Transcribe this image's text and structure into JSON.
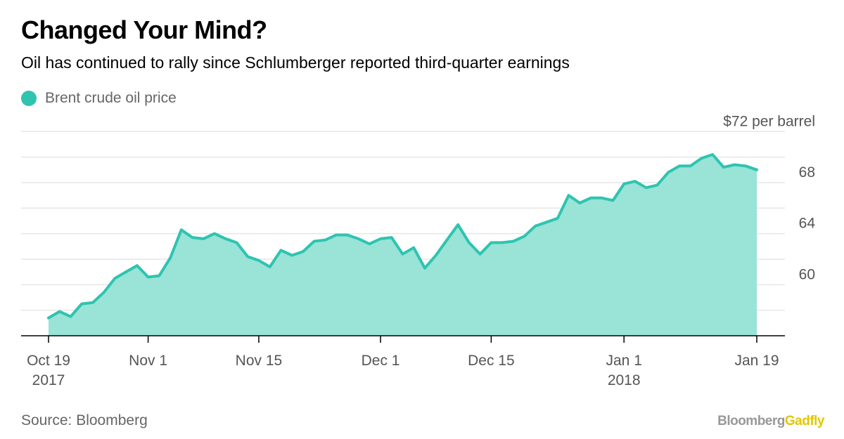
{
  "title": "Changed Your Mind?",
  "subtitle": "Oil has continued to rally since Schlumberger reported third-quarter earnings",
  "colors": {
    "series_line": "#2ec4b0",
    "series_fill": "#99e3d7",
    "grid": "#e6e6e6",
    "axis": "#000000",
    "tick_text": "#555555"
  },
  "legend": {
    "label": "Brent crude oil price"
  },
  "source": "Source: Bloomberg",
  "brand": {
    "part1": "Bloomberg",
    "part2": "Gadfly"
  },
  "chart_data": {
    "type": "area",
    "title": "Changed Your Mind?",
    "series": [
      {
        "name": "Brent crude oil price",
        "unit": "$ per barrel",
        "values": [
          57.4,
          57.9,
          57.5,
          58.5,
          58.6,
          59.4,
          60.5,
          61.0,
          61.5,
          60.6,
          60.7,
          62.1,
          64.3,
          63.7,
          63.6,
          64.0,
          63.6,
          63.3,
          62.2,
          61.9,
          61.4,
          62.7,
          62.3,
          62.6,
          63.4,
          63.5,
          63.9,
          63.9,
          63.6,
          63.2,
          63.6,
          63.7,
          62.4,
          62.9,
          61.3,
          62.3,
          63.5,
          64.7,
          63.3,
          62.4,
          63.3,
          63.3,
          63.4,
          63.8,
          64.6,
          64.9,
          65.2,
          67.0,
          66.4,
          66.8,
          66.8,
          66.6,
          67.9,
          68.1,
          67.6,
          67.8,
          68.8,
          69.3,
          69.3,
          69.9,
          70.2,
          69.2,
          69.4,
          69.3,
          69.0
        ]
      }
    ],
    "x_ticks": [
      {
        "label": "Oct 19",
        "sublabel": "2017",
        "index": 0
      },
      {
        "label": "Nov 1",
        "sublabel": "",
        "index": 9
      },
      {
        "label": "Nov 15",
        "sublabel": "",
        "index": 19
      },
      {
        "label": "Dec 1",
        "sublabel": "",
        "index": 30
      },
      {
        "label": "Dec 15",
        "sublabel": "",
        "index": 40
      },
      {
        "label": "Jan 1",
        "sublabel": "2018",
        "index": 52
      },
      {
        "label": "Jan 19",
        "sublabel": "",
        "index": 64
      }
    ],
    "y_ticks": [
      {
        "value": 72,
        "label": "$72 per barrel"
      },
      {
        "value": 68,
        "label": "68"
      },
      {
        "value": 64,
        "label": "64"
      },
      {
        "value": 60,
        "label": "60"
      }
    ],
    "ylim": [
      56.0,
      72.4
    ],
    "gridlines": [
      58,
      60,
      62,
      64,
      66,
      68,
      70,
      72
    ],
    "xlabel": "",
    "ylabel": ""
  }
}
